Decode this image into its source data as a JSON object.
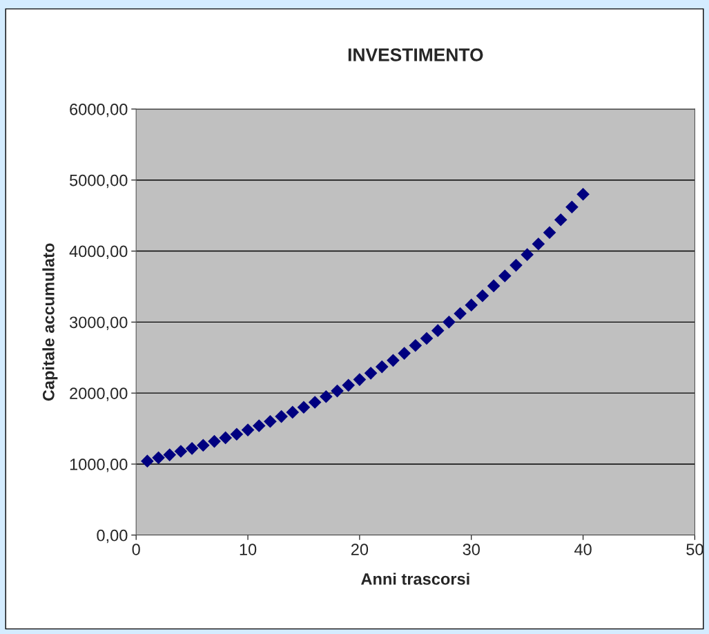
{
  "chart_data": {
    "type": "scatter",
    "title": "INVESTIMENTO",
    "xlabel": "Anni trascorsi",
    "ylabel": "Capitale accumulato",
    "x": [
      1,
      2,
      3,
      4,
      5,
      6,
      7,
      8,
      9,
      10,
      11,
      12,
      13,
      14,
      15,
      16,
      17,
      18,
      19,
      20,
      21,
      22,
      23,
      24,
      25,
      26,
      27,
      28,
      29,
      30,
      31,
      32,
      33,
      34,
      35,
      36,
      37,
      38,
      39,
      40
    ],
    "series": [
      {
        "color": "#000080",
        "values": [
          1042,
          1090,
          1130,
          1180,
          1220,
          1265,
          1320,
          1370,
          1420,
          1480,
          1540,
          1600,
          1670,
          1730,
          1800,
          1870,
          1950,
          2030,
          2110,
          2190,
          2280,
          2370,
          2460,
          2560,
          2670,
          2770,
          2880,
          3000,
          3120,
          3240,
          3370,
          3510,
          3650,
          3800,
          3950,
          4100,
          4260,
          4440,
          4620,
          4800
        ]
      }
    ],
    "xlim": [
      0,
      50
    ],
    "xticks": [
      0,
      10,
      20,
      30,
      40,
      50
    ],
    "ylim": [
      0,
      6000
    ],
    "yticks": [
      {
        "value": 0,
        "label": "0,00"
      },
      {
        "value": 1000,
        "label": "1000,00"
      },
      {
        "value": 2000,
        "label": "2000,00"
      },
      {
        "value": 3000,
        "label": "3000,00"
      },
      {
        "value": 4000,
        "label": "4000,00"
      },
      {
        "value": 5000,
        "label": "5000,00"
      },
      {
        "value": 6000,
        "label": "6000,00"
      }
    ],
    "grid": "y",
    "marker": "diamond",
    "legend": false
  }
}
